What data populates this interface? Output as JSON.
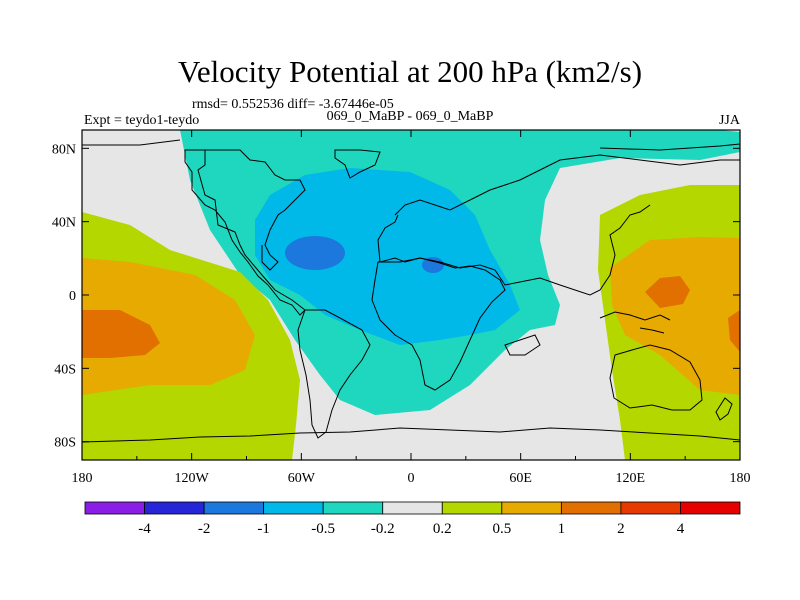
{
  "chart_data": {
    "type": "heatmap",
    "title": "Velocity Potential at 200 hPa (km2/s)",
    "rmsd_text": "rmsd= 0.552536 diff= -3.67446e-05",
    "left_label": "Expt = teydo1-teydo",
    "center_label": "069_0_MaBP - 069_0_MaBP",
    "right_label": "JJA",
    "x_ticks": [
      {
        "value": -180,
        "label": "180"
      },
      {
        "value": -120,
        "label": "120W"
      },
      {
        "value": -60,
        "label": "60W"
      },
      {
        "value": 0,
        "label": "0"
      },
      {
        "value": 60,
        "label": "60E"
      },
      {
        "value": 120,
        "label": "120E"
      },
      {
        "value": 180,
        "label": "180"
      }
    ],
    "y_ticks": [
      {
        "value": 80,
        "label": "80N"
      },
      {
        "value": 40,
        "label": "40N"
      },
      {
        "value": 0,
        "label": "0"
      },
      {
        "value": -40,
        "label": "40S"
      },
      {
        "value": -80,
        "label": "80S"
      }
    ],
    "xlim": [
      -180,
      180
    ],
    "ylim": [
      -90,
      90
    ],
    "colorbar": {
      "levels": [
        "-4",
        "-2",
        "-1",
        "-0.5",
        "-0.2",
        "0.2",
        "0.5",
        "1",
        "2",
        "4"
      ],
      "colors": [
        "#8b1ee6",
        "#2626d8",
        "#1c78dc",
        "#00b9e8",
        "#1ed7be",
        "#e6e6e6",
        "#b4d700",
        "#e6aa00",
        "#e27000",
        "#e63a00",
        "#e60000"
      ]
    },
    "regions": [
      {
        "level": "negative_weak",
        "name": "americas-atlantic-africa-low",
        "color": "#1ed7be"
      },
      {
        "level": "negative_moderate",
        "name": "atlantic-africa-core",
        "color": "#00b9e8"
      },
      {
        "level": "negative_strong",
        "name": "north-atlantic-minimum",
        "color": "#1c78dc"
      },
      {
        "level": "negative_strong",
        "name": "sahara-minimum",
        "color": "#1c78dc"
      },
      {
        "level": "positive_weak",
        "name": "pacific-maximum-west",
        "color": "#b4d700"
      },
      {
        "level": "positive_moderate",
        "name": "pacific-core-west",
        "color": "#e6aa00"
      },
      {
        "level": "positive_strong",
        "name": "pacific-peak-west",
        "color": "#e27000"
      },
      {
        "level": "positive_weak",
        "name": "asia-pacific-maximum",
        "color": "#b4d700"
      },
      {
        "level": "positive_moderate",
        "name": "asia-pacific-core",
        "color": "#e6aa00"
      },
      {
        "level": "positive_strong",
        "name": "asia-pacific-peak",
        "color": "#e27000"
      }
    ]
  }
}
